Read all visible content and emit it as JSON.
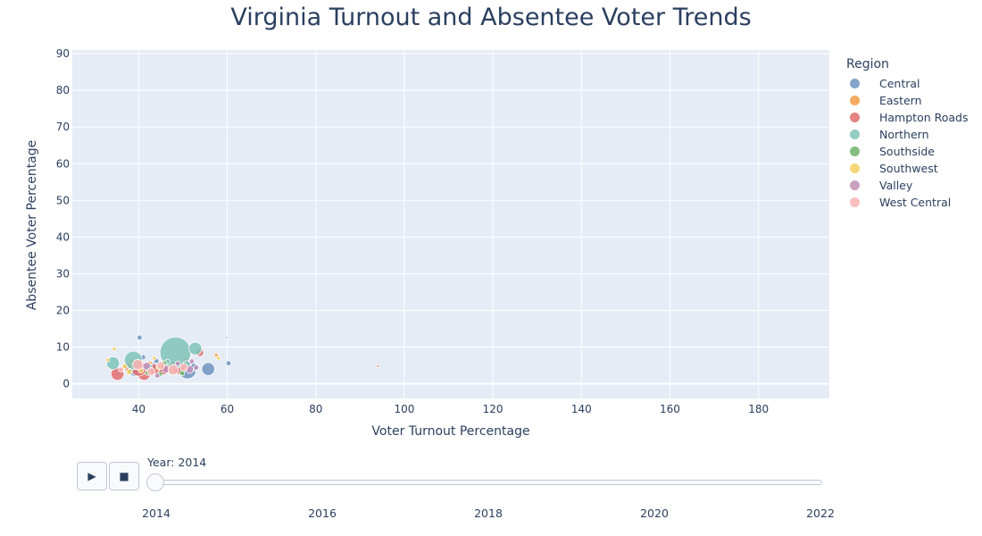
{
  "chart_data": {
    "type": "scatter",
    "title": "Virginia Turnout and Absentee Voter Trends",
    "xlabel": "Voter Turnout Percentage",
    "ylabel": "Absentee Voter Percentage",
    "xlim": [
      25,
      196
    ],
    "ylim": [
      -4,
      91
    ],
    "x_ticks": [
      40,
      60,
      80,
      100,
      120,
      140,
      160,
      180
    ],
    "y_ticks": [
      0,
      10,
      20,
      30,
      40,
      50,
      60,
      70,
      80,
      90
    ],
    "grid": true,
    "legend_title": "Region",
    "legend_placement": "right",
    "series": [
      {
        "name": "Central",
        "color": "#7094c0",
        "points": [
          {
            "x": 40.2,
            "y": 12.6,
            "s": 2
          },
          {
            "x": 55.7,
            "y": 4.0,
            "s": 5
          },
          {
            "x": 51.0,
            "y": 3.8,
            "s": 7
          },
          {
            "x": 41.0,
            "y": 7.2,
            "s": 2
          },
          {
            "x": 60.3,
            "y": 5.6,
            "s": 2
          },
          {
            "x": 39.2,
            "y": 3.8,
            "s": 5
          },
          {
            "x": 45.0,
            "y": 3.5,
            "s": 3
          },
          {
            "x": 48.5,
            "y": 4.2,
            "s": 4
          },
          {
            "x": 52.5,
            "y": 4.5,
            "s": 3
          },
          {
            "x": 34.8,
            "y": 4.0,
            "s": 2
          },
          {
            "x": 44.0,
            "y": 6.2,
            "s": 2
          },
          {
            "x": 43.0,
            "y": 4.9,
            "s": 3
          }
        ]
      },
      {
        "name": "Eastern",
        "color": "#f39c43",
        "points": [
          {
            "x": 42.5,
            "y": 5.5,
            "s": 2
          },
          {
            "x": 57.5,
            "y": 7.8,
            "s": 1.5
          },
          {
            "x": 38.5,
            "y": 6.0,
            "s": 2
          },
          {
            "x": 46.0,
            "y": 4.8,
            "s": 2
          },
          {
            "x": 50.5,
            "y": 6.5,
            "s": 2
          }
        ]
      },
      {
        "name": "Hampton Roads",
        "color": "#e36d6d",
        "points": [
          {
            "x": 35.2,
            "y": 2.7,
            "s": 5
          },
          {
            "x": 41.2,
            "y": 2.7,
            "s": 5
          },
          {
            "x": 40.0,
            "y": 4.2,
            "s": 6
          },
          {
            "x": 53.8,
            "y": 8.5,
            "s": 3
          },
          {
            "x": 49.0,
            "y": 4.3,
            "s": 5
          },
          {
            "x": 45.5,
            "y": 3.8,
            "s": 4
          },
          {
            "x": 43.5,
            "y": 4.0,
            "s": 4
          },
          {
            "x": 94.0,
            "y": 4.8,
            "s": 1
          },
          {
            "x": 47.5,
            "y": 5.0,
            "s": 3
          },
          {
            "x": 37.5,
            "y": 4.5,
            "s": 3
          }
        ]
      },
      {
        "name": "Northern",
        "color": "#7fc3b8",
        "points": [
          {
            "x": 48.3,
            "y": 8.5,
            "s": 12
          },
          {
            "x": 38.8,
            "y": 6.4,
            "s": 7
          },
          {
            "x": 34.2,
            "y": 5.6,
            "s": 5
          },
          {
            "x": 52.8,
            "y": 9.6,
            "s": 5
          },
          {
            "x": 50.8,
            "y": 5.2,
            "s": 3
          },
          {
            "x": 42.2,
            "y": 4.6,
            "s": 3
          },
          {
            "x": 46.5,
            "y": 6.0,
            "s": 2
          },
          {
            "x": 59.8,
            "y": 12.6,
            "s": 1
          }
        ]
      },
      {
        "name": "Southside",
        "color": "#6fb36a",
        "points": [
          {
            "x": 44.8,
            "y": 2.6,
            "s": 2
          },
          {
            "x": 42.0,
            "y": 3.0,
            "s": 2
          },
          {
            "x": 47.2,
            "y": 3.2,
            "s": 2
          },
          {
            "x": 49.8,
            "y": 2.9,
            "s": 2
          },
          {
            "x": 45.8,
            "y": 5.6,
            "s": 2
          },
          {
            "x": 38.0,
            "y": 3.5,
            "s": 2
          }
        ]
      },
      {
        "name": "Southwest",
        "color": "#f2d061",
        "points": [
          {
            "x": 33.0,
            "y": 6.5,
            "s": 1.5
          },
          {
            "x": 34.5,
            "y": 9.5,
            "s": 1.5
          },
          {
            "x": 36.8,
            "y": 4.7,
            "s": 2
          },
          {
            "x": 40.5,
            "y": 3.6,
            "s": 2
          },
          {
            "x": 37.8,
            "y": 3.2,
            "s": 2
          },
          {
            "x": 43.5,
            "y": 7.0,
            "s": 1.5
          },
          {
            "x": 44.5,
            "y": 4.5,
            "s": 2
          },
          {
            "x": 58.0,
            "y": 7.0,
            "s": 1.5
          }
        ]
      },
      {
        "name": "Valley",
        "color": "#c08fb5",
        "points": [
          {
            "x": 41.8,
            "y": 4.8,
            "s": 3
          },
          {
            "x": 46.2,
            "y": 4.0,
            "s": 3
          },
          {
            "x": 48.8,
            "y": 5.5,
            "s": 2
          },
          {
            "x": 51.5,
            "y": 3.9,
            "s": 3
          },
          {
            "x": 44.2,
            "y": 2.2,
            "s": 2
          },
          {
            "x": 53.0,
            "y": 4.4,
            "s": 2
          },
          {
            "x": 52.0,
            "y": 6.1,
            "s": 2
          }
        ]
      },
      {
        "name": "West Central",
        "color": "#f9b4b4",
        "points": [
          {
            "x": 39.8,
            "y": 5.2,
            "s": 4
          },
          {
            "x": 45.0,
            "y": 5.0,
            "s": 3
          },
          {
            "x": 47.8,
            "y": 3.8,
            "s": 4
          },
          {
            "x": 50.2,
            "y": 4.5,
            "s": 3
          },
          {
            "x": 42.8,
            "y": 3.3,
            "s": 3
          },
          {
            "x": 36.0,
            "y": 3.9,
            "s": 2
          }
        ]
      }
    ]
  },
  "controls": {
    "play_label": "▶",
    "stop_label": "■",
    "slider_current": "Year: 2014",
    "slider_value": 2014,
    "slider_ticks": [
      "2014",
      "2016",
      "2018",
      "2020",
      "2022"
    ]
  }
}
